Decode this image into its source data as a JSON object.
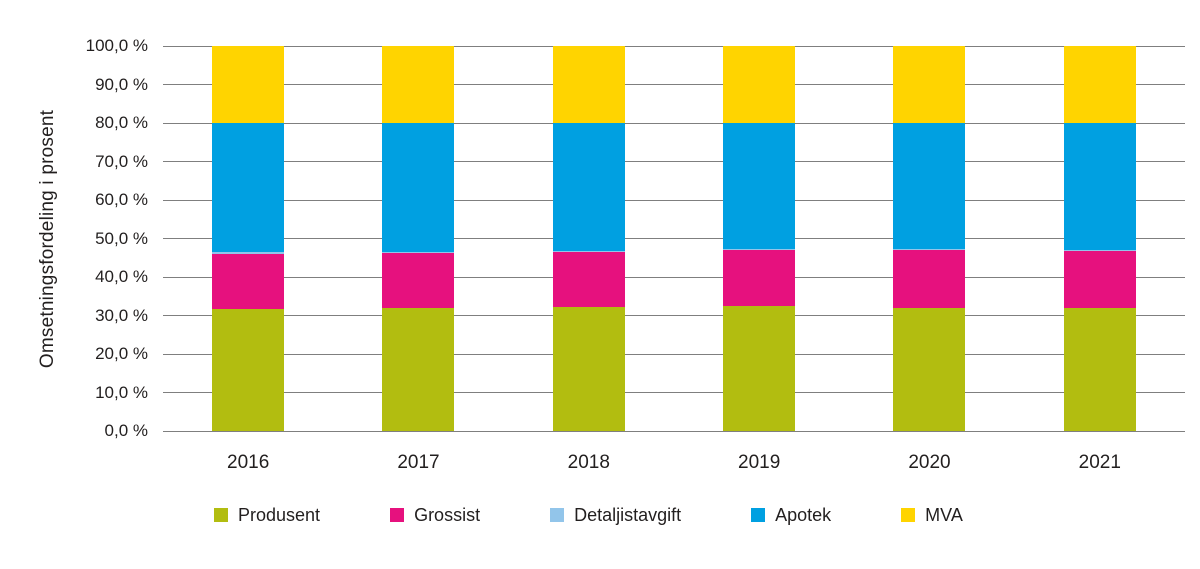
{
  "chart_data": {
    "type": "bar",
    "stacked": true,
    "title": "",
    "ylabel": "Omsetningsfordeling i prosent",
    "xlabel": "",
    "ylim": [
      0,
      100
    ],
    "grid": true,
    "legend_position": "bottom",
    "categories": [
      "2016",
      "2017",
      "2018",
      "2019",
      "2020",
      "2021"
    ],
    "series": [
      {
        "name": "Produsent",
        "color": "#B2BD10",
        "values": [
          31.7,
          31.9,
          32.1,
          32.6,
          32.0,
          31.9
        ]
      },
      {
        "name": "Grossist",
        "color": "#E6117E",
        "values": [
          14.4,
          14.3,
          14.3,
          14.5,
          14.9,
          14.8
        ]
      },
      {
        "name": "Detaljistavgift",
        "color": "#92C5EA",
        "values": [
          0.3,
          0.3,
          0.3,
          0.3,
          0.3,
          0.3
        ]
      },
      {
        "name": "Apotek",
        "color": "#00A0E1",
        "values": [
          33.6,
          33.5,
          33.3,
          32.6,
          32.8,
          33.0
        ]
      },
      {
        "name": "MVA",
        "color": "#FFD400",
        "values": [
          20.0,
          20.0,
          20.0,
          20.0,
          20.0,
          20.0
        ]
      }
    ],
    "yticks": [
      "100,0 %",
      "90,0 %",
      "80,0 %",
      "70,0 %",
      "60,0 %",
      "50,0 %",
      "40,0 %",
      "30,0 %",
      "20,0 %",
      "10,0 %",
      "0,0 %"
    ]
  },
  "colors": {
    "background": "#FFFFFF",
    "gridline": "#7F7F7F",
    "text": "#221F1F"
  }
}
